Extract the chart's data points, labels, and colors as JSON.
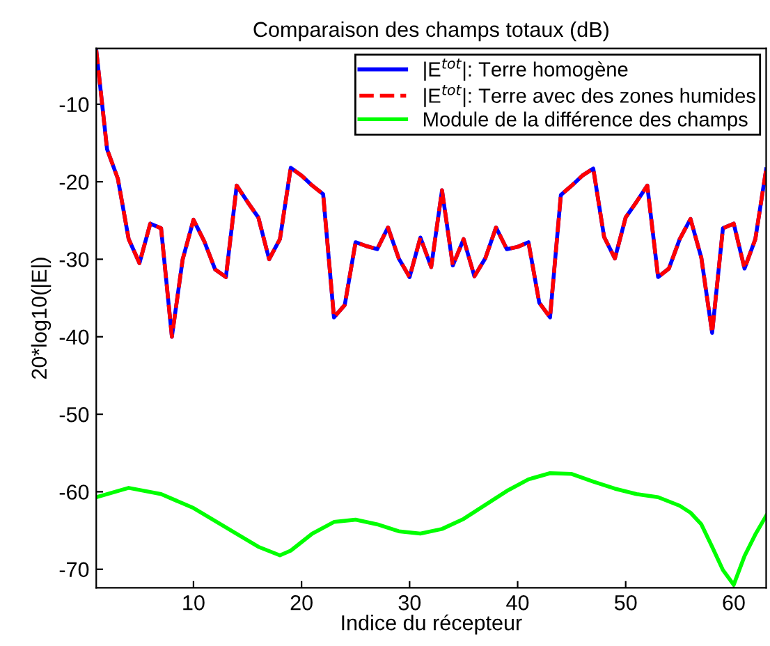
{
  "chart_data": {
    "type": "line",
    "title": "Comparaison des champs totaux (dB)",
    "xlabel": "Indice du récepteur",
    "ylabel": "20*log10(|E|)",
    "x": [
      1,
      2,
      3,
      4,
      5,
      6,
      7,
      8,
      9,
      10,
      11,
      12,
      13,
      14,
      15,
      16,
      17,
      18,
      19,
      20,
      21,
      22,
      23,
      24,
      25,
      26,
      27,
      28,
      29,
      30,
      31,
      32,
      33,
      34,
      35,
      36,
      37,
      38,
      39,
      40,
      41,
      42,
      43,
      44,
      45,
      46,
      47,
      48,
      49,
      50,
      51,
      52,
      53,
      54,
      55,
      56,
      57,
      58,
      59,
      60,
      61,
      62,
      63
    ],
    "series": [
      {
        "name": "|E$^{tot}$|: Terre homogène",
        "color": "#0000ff",
        "line_style": "solid",
        "values": [
          -3.0,
          -15.8,
          -19.6,
          -27.4,
          -30.5,
          -25.4,
          -26,
          -40,
          -30,
          -24.9,
          -27.7,
          -31.3,
          -32.3,
          -20.5,
          -22.6,
          -24.6,
          -30,
          -27.4,
          -18.2,
          -19.2,
          -20.5,
          -21.6,
          -37.5,
          -35.9,
          -27.8,
          -28.3,
          -28.7,
          -25.9,
          -29.9,
          -32.3,
          -27.2,
          -31,
          -21.1,
          -30.8,
          -27.4,
          -32.2,
          -29.9,
          -25.9,
          -28.7,
          -28.4,
          -27.8,
          -35.6,
          -37.5,
          -21.7,
          -20.5,
          -19.2,
          -18.3,
          -27.1,
          -29.9,
          -24.6,
          -22.6,
          -20.5,
          -32.3,
          -31.2,
          -27.4,
          -24.8,
          -29.8,
          -39.5,
          -26,
          -25.4,
          -31.2,
          -27.4,
          -18.4
        ]
      },
      {
        "name": "|E$^{tot}$|: Terre avec des zones humides",
        "color": "#ff0000",
        "line_style": "dashed",
        "values": [
          -3.0,
          -15.8,
          -19.6,
          -27.4,
          -30.5,
          -25.4,
          -26,
          -40,
          -30,
          -24.9,
          -27.7,
          -31.3,
          -32.3,
          -20.5,
          -22.6,
          -24.6,
          -30,
          -27.4,
          -18.2,
          -19.2,
          -20.5,
          -21.6,
          -37.5,
          -35.9,
          -27.8,
          -28.3,
          -28.7,
          -25.9,
          -29.9,
          -32.3,
          -27.2,
          -31,
          -21.1,
          -30.8,
          -27.4,
          -32.2,
          -29.9,
          -25.9,
          -28.7,
          -28.4,
          -27.8,
          -35.6,
          -37.5,
          -21.7,
          -20.5,
          -19.2,
          -18.3,
          -27.1,
          -29.9,
          -24.6,
          -22.6,
          -20.5,
          -32.3,
          -31.2,
          -27.4,
          -24.8,
          -29.8,
          -39.5,
          -26,
          -25.4,
          -31.2,
          -27.4,
          -18.4
        ]
      },
      {
        "name": "Module de la différence des champs",
        "color": "#00ff00",
        "line_style": "solid",
        "x": [
          1,
          4,
          7,
          10,
          13,
          16,
          18,
          19,
          21,
          23,
          25,
          27,
          29,
          31,
          33,
          35,
          37,
          39,
          41,
          43,
          45,
          47,
          49,
          51,
          53,
          55,
          56,
          57,
          58,
          59,
          60,
          61,
          62,
          63
        ],
        "values": [
          -60.7,
          -59.5,
          -60.3,
          -62.1,
          -64.6,
          -67.1,
          -68.2,
          -67.6,
          -65.4,
          -63.9,
          -63.6,
          -64.2,
          -65.1,
          -65.4,
          -64.8,
          -63.5,
          -61.7,
          -59.9,
          -58.4,
          -57.6,
          -57.7,
          -58.7,
          -59.6,
          -60.3,
          -60.7,
          -61.8,
          -62.7,
          -64.2,
          -67.1,
          -70.1,
          -72,
          -68.3,
          -65.5,
          -63.1
        ]
      }
    ],
    "xlim": [
      1,
      63
    ],
    "ylim": [
      -72.4,
      -2.8
    ],
    "xticks": [
      10,
      20,
      30,
      40,
      50,
      60
    ],
    "yticks": [
      -70,
      -60,
      -50,
      -40,
      -30,
      -20,
      -10
    ],
    "grid": false,
    "legend": "top right"
  }
}
